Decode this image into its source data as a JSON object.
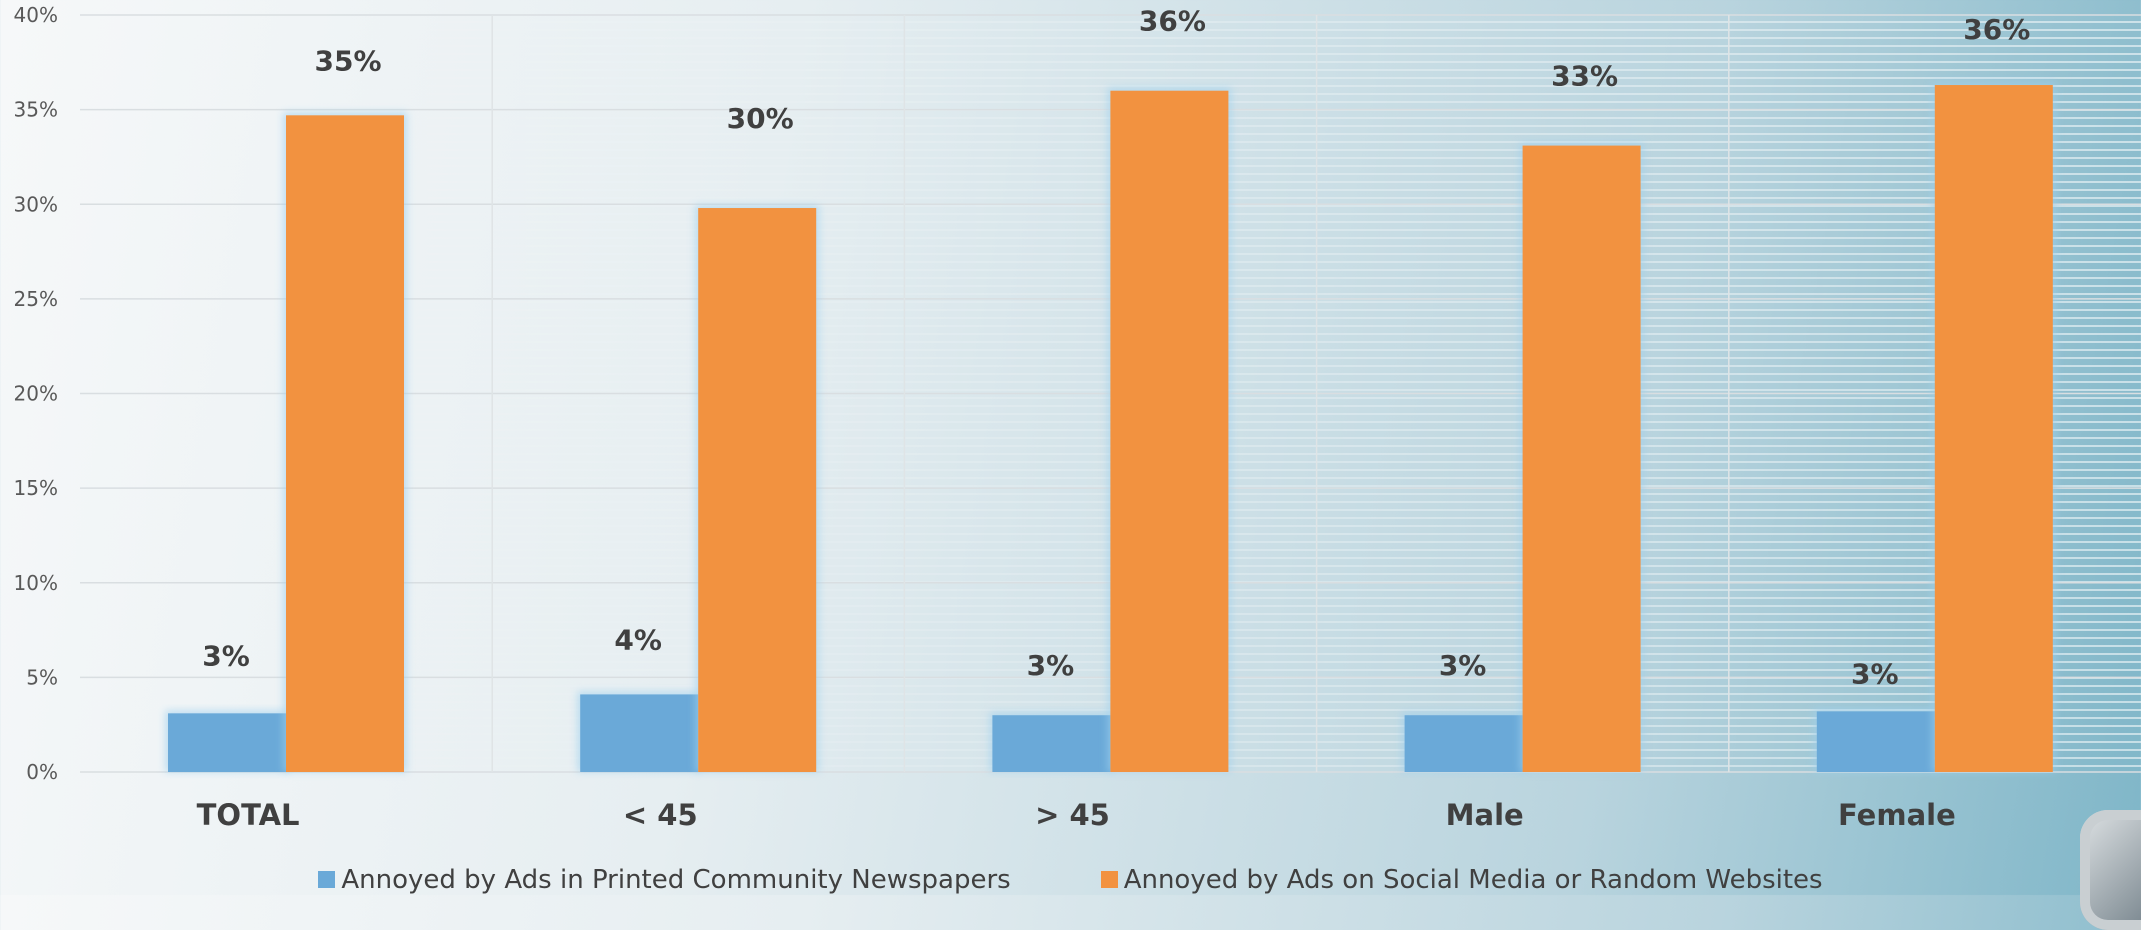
{
  "chart_data": {
    "type": "bar",
    "categories": [
      "TOTAL",
      "< 45",
      "> 45",
      "Male",
      "Female"
    ],
    "series": [
      {
        "name": "Annoyed by Ads in Printed Community Newspapers",
        "color": "#6aa9d8",
        "values": [
          3.1,
          4.1,
          3.0,
          3.0,
          3.2
        ],
        "labels": [
          "3%",
          "4%",
          "3%",
          "3%",
          "3%"
        ]
      },
      {
        "name": "Annoyed by Ads on Social Media or Random Websites",
        "color": "#f29240",
        "values": [
          34.7,
          29.8,
          36.0,
          33.1,
          36.3
        ],
        "labels": [
          "35%",
          "30%",
          "36%",
          "33%",
          "36%"
        ]
      }
    ],
    "y_ticks": [
      "0%",
      "5%",
      "10%",
      "15%",
      "20%",
      "25%",
      "30%",
      "35%",
      "40%"
    ],
    "ylim": [
      0,
      40
    ],
    "grid": true,
    "legend_position": "bottom"
  }
}
